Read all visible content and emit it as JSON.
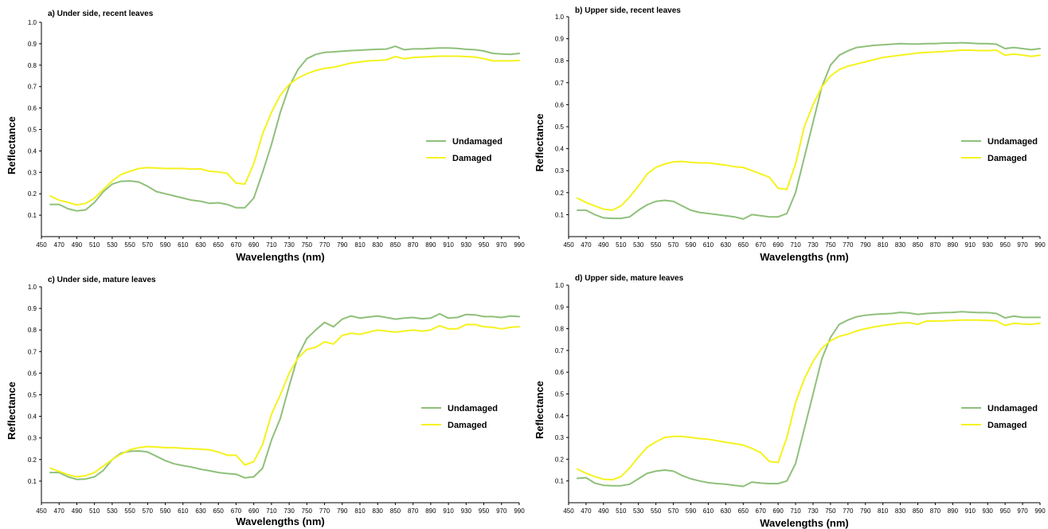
{
  "figure": {
    "colors": {
      "undamaged": "#8fc07a",
      "damaged": "#f5f21e",
      "axis": "#000000"
    }
  },
  "chart_data": [
    {
      "type": "line",
      "title": "a) Under side, recent leaves",
      "xlabel": "Wavelengths (nm)",
      "ylabel": "Reflectance",
      "xlim": [
        450,
        990
      ],
      "ylim": [
        0,
        1.0
      ],
      "xticks": [
        450,
        470,
        490,
        510,
        530,
        550,
        570,
        590,
        610,
        630,
        650,
        670,
        690,
        710,
        730,
        750,
        770,
        790,
        810,
        830,
        850,
        870,
        890,
        910,
        930,
        950,
        970,
        990
      ],
      "yticks": [
        0.1,
        0.2,
        0.3,
        0.4,
        0.5,
        0.6,
        0.7,
        0.8,
        0.9,
        1.0
      ],
      "grid": false,
      "legend": "right",
      "x": [
        460,
        470,
        480,
        490,
        500,
        510,
        520,
        530,
        540,
        550,
        560,
        570,
        580,
        590,
        600,
        610,
        620,
        630,
        640,
        650,
        660,
        670,
        680,
        690,
        700,
        710,
        720,
        730,
        740,
        750,
        760,
        770,
        780,
        790,
        800,
        810,
        820,
        830,
        840,
        850,
        860,
        870,
        880,
        890,
        900,
        910,
        920,
        930,
        940,
        950,
        960,
        970,
        980,
        990
      ],
      "series": [
        {
          "name": "Undamaged",
          "values": [
            0.15,
            0.15,
            0.13,
            0.12,
            0.125,
            0.16,
            0.21,
            0.245,
            0.258,
            0.26,
            0.255,
            0.235,
            0.21,
            0.2,
            0.19,
            0.18,
            0.17,
            0.165,
            0.155,
            0.158,
            0.15,
            0.135,
            0.135,
            0.18,
            0.3,
            0.43,
            0.58,
            0.7,
            0.78,
            0.83,
            0.85,
            0.86,
            0.862,
            0.865,
            0.868,
            0.87,
            0.872,
            0.874,
            0.875,
            0.888,
            0.872,
            0.876,
            0.876,
            0.878,
            0.88,
            0.88,
            0.878,
            0.874,
            0.872,
            0.866,
            0.855,
            0.852,
            0.85,
            0.855
          ]
        },
        {
          "name": "Damaged",
          "values": [
            0.19,
            0.17,
            0.16,
            0.148,
            0.155,
            0.18,
            0.22,
            0.26,
            0.29,
            0.305,
            0.318,
            0.322,
            0.32,
            0.318,
            0.318,
            0.318,
            0.315,
            0.316,
            0.305,
            0.302,
            0.295,
            0.25,
            0.245,
            0.34,
            0.48,
            0.58,
            0.66,
            0.71,
            0.74,
            0.76,
            0.775,
            0.785,
            0.79,
            0.8,
            0.81,
            0.815,
            0.82,
            0.822,
            0.825,
            0.84,
            0.83,
            0.836,
            0.838,
            0.84,
            0.842,
            0.842,
            0.842,
            0.84,
            0.838,
            0.83,
            0.82,
            0.82,
            0.82,
            0.822
          ]
        }
      ]
    },
    {
      "type": "line",
      "title": "b) Upper side, recent leaves",
      "xlabel": "Wavelengths (nm)",
      "ylabel": "Reflectance",
      "xlim": [
        450,
        990
      ],
      "ylim": [
        0,
        1.0
      ],
      "xticks": [
        450,
        470,
        490,
        510,
        530,
        550,
        570,
        590,
        610,
        630,
        650,
        670,
        690,
        710,
        730,
        750,
        770,
        790,
        810,
        830,
        850,
        870,
        890,
        910,
        930,
        950,
        970,
        990
      ],
      "yticks": [
        0.1,
        0.2,
        0.3,
        0.4,
        0.5,
        0.6,
        0.7,
        0.8,
        0.9,
        1.0
      ],
      "grid": false,
      "legend": "right",
      "x": [
        460,
        470,
        480,
        490,
        500,
        510,
        520,
        530,
        540,
        550,
        560,
        570,
        580,
        590,
        600,
        610,
        620,
        630,
        640,
        650,
        660,
        670,
        680,
        690,
        700,
        710,
        720,
        730,
        740,
        750,
        760,
        770,
        780,
        790,
        800,
        810,
        820,
        830,
        840,
        850,
        860,
        870,
        880,
        890,
        900,
        910,
        920,
        930,
        940,
        950,
        960,
        970,
        980,
        990
      ],
      "series": [
        {
          "name": "Undamaged",
          "values": [
            0.12,
            0.12,
            0.1,
            0.085,
            0.083,
            0.083,
            0.09,
            0.12,
            0.145,
            0.16,
            0.165,
            0.16,
            0.14,
            0.12,
            0.11,
            0.105,
            0.1,
            0.095,
            0.09,
            0.08,
            0.1,
            0.095,
            0.09,
            0.09,
            0.105,
            0.2,
            0.36,
            0.52,
            0.68,
            0.78,
            0.825,
            0.845,
            0.86,
            0.865,
            0.87,
            0.872,
            0.875,
            0.878,
            0.876,
            0.876,
            0.878,
            0.878,
            0.88,
            0.88,
            0.882,
            0.88,
            0.878,
            0.878,
            0.875,
            0.855,
            0.86,
            0.855,
            0.85,
            0.855
          ]
        },
        {
          "name": "Damaged",
          "values": [
            0.175,
            0.155,
            0.14,
            0.125,
            0.12,
            0.14,
            0.18,
            0.23,
            0.285,
            0.315,
            0.33,
            0.34,
            0.342,
            0.338,
            0.335,
            0.335,
            0.33,
            0.325,
            0.318,
            0.315,
            0.3,
            0.285,
            0.27,
            0.22,
            0.215,
            0.33,
            0.5,
            0.6,
            0.68,
            0.73,
            0.76,
            0.775,
            0.785,
            0.795,
            0.805,
            0.815,
            0.82,
            0.825,
            0.83,
            0.835,
            0.838,
            0.84,
            0.842,
            0.845,
            0.848,
            0.848,
            0.846,
            0.846,
            0.848,
            0.825,
            0.83,
            0.825,
            0.82,
            0.825
          ]
        }
      ]
    },
    {
      "type": "line",
      "title": "c) Under side, mature leaves",
      "xlabel": "Wavelengths (nm)",
      "ylabel": "Reflectance",
      "xlim": [
        450,
        990
      ],
      "ylim": [
        0,
        1.0
      ],
      "xticks": [
        450,
        470,
        490,
        510,
        530,
        550,
        570,
        590,
        610,
        630,
        650,
        670,
        690,
        710,
        730,
        750,
        770,
        790,
        810,
        830,
        850,
        870,
        890,
        910,
        930,
        950,
        970,
        990
      ],
      "yticks": [
        0.1,
        0.2,
        0.3,
        0.4,
        0.5,
        0.6,
        0.7,
        0.8,
        0.9,
        1.0
      ],
      "grid": false,
      "legend": "right",
      "x": [
        460,
        470,
        480,
        490,
        500,
        510,
        520,
        530,
        540,
        550,
        560,
        570,
        580,
        590,
        600,
        610,
        620,
        630,
        640,
        650,
        660,
        670,
        680,
        690,
        700,
        710,
        720,
        730,
        740,
        750,
        760,
        770,
        780,
        790,
        800,
        810,
        820,
        830,
        840,
        850,
        860,
        870,
        880,
        890,
        900,
        910,
        920,
        930,
        940,
        950,
        960,
        970,
        980,
        990
      ],
      "series": [
        {
          "name": "Undamaged",
          "values": [
            0.14,
            0.14,
            0.12,
            0.108,
            0.11,
            0.12,
            0.15,
            0.2,
            0.23,
            0.238,
            0.24,
            0.235,
            0.215,
            0.195,
            0.18,
            0.172,
            0.165,
            0.155,
            0.148,
            0.14,
            0.135,
            0.132,
            0.115,
            0.12,
            0.16,
            0.29,
            0.39,
            0.54,
            0.68,
            0.76,
            0.8,
            0.835,
            0.815,
            0.85,
            0.865,
            0.855,
            0.86,
            0.865,
            0.858,
            0.85,
            0.855,
            0.858,
            0.852,
            0.855,
            0.875,
            0.855,
            0.858,
            0.872,
            0.87,
            0.862,
            0.862,
            0.858,
            0.865,
            0.862
          ]
        },
        {
          "name": "Damaged",
          "values": [
            0.16,
            0.145,
            0.13,
            0.12,
            0.125,
            0.14,
            0.17,
            0.2,
            0.225,
            0.245,
            0.255,
            0.26,
            0.258,
            0.255,
            0.255,
            0.252,
            0.25,
            0.248,
            0.245,
            0.235,
            0.22,
            0.22,
            0.175,
            0.19,
            0.27,
            0.41,
            0.5,
            0.6,
            0.67,
            0.71,
            0.72,
            0.745,
            0.735,
            0.775,
            0.785,
            0.78,
            0.79,
            0.8,
            0.795,
            0.79,
            0.795,
            0.8,
            0.795,
            0.8,
            0.82,
            0.805,
            0.805,
            0.825,
            0.825,
            0.815,
            0.812,
            0.805,
            0.812,
            0.815
          ]
        }
      ]
    },
    {
      "type": "line",
      "title": "d) Upper side, mature leaves",
      "xlabel": "Wavelengths (nm)",
      "ylabel": "Reflectance",
      "xlim": [
        450,
        990
      ],
      "ylim": [
        0,
        1.0
      ],
      "xticks": [
        450,
        470,
        490,
        510,
        530,
        550,
        570,
        590,
        610,
        630,
        650,
        670,
        690,
        710,
        730,
        750,
        770,
        790,
        810,
        830,
        850,
        870,
        890,
        910,
        930,
        950,
        970,
        990
      ],
      "yticks": [
        0.1,
        0.2,
        0.3,
        0.4,
        0.5,
        0.6,
        0.7,
        0.8,
        0.9,
        1.0
      ],
      "grid": false,
      "legend": "right",
      "x": [
        460,
        470,
        480,
        490,
        500,
        510,
        520,
        530,
        540,
        550,
        560,
        570,
        580,
        590,
        600,
        610,
        620,
        630,
        640,
        650,
        660,
        670,
        680,
        690,
        700,
        710,
        720,
        730,
        740,
        750,
        760,
        770,
        780,
        790,
        800,
        810,
        820,
        830,
        840,
        850,
        860,
        870,
        880,
        890,
        900,
        910,
        920,
        930,
        940,
        950,
        960,
        970,
        980,
        990
      ],
      "series": [
        {
          "name": "Undamaged",
          "values": [
            0.112,
            0.115,
            0.09,
            0.08,
            0.078,
            0.078,
            0.085,
            0.11,
            0.135,
            0.145,
            0.15,
            0.145,
            0.125,
            0.11,
            0.1,
            0.092,
            0.088,
            0.085,
            0.08,
            0.075,
            0.095,
            0.09,
            0.088,
            0.088,
            0.1,
            0.18,
            0.34,
            0.5,
            0.66,
            0.76,
            0.82,
            0.84,
            0.855,
            0.862,
            0.866,
            0.868,
            0.87,
            0.875,
            0.872,
            0.866,
            0.87,
            0.872,
            0.874,
            0.875,
            0.878,
            0.876,
            0.874,
            0.874,
            0.87,
            0.85,
            0.858,
            0.852,
            0.852,
            0.852
          ]
        },
        {
          "name": "Damaged",
          "values": [
            0.155,
            0.135,
            0.12,
            0.108,
            0.105,
            0.12,
            0.16,
            0.21,
            0.255,
            0.28,
            0.3,
            0.305,
            0.305,
            0.3,
            0.295,
            0.292,
            0.285,
            0.278,
            0.272,
            0.265,
            0.25,
            0.23,
            0.19,
            0.185,
            0.3,
            0.46,
            0.57,
            0.65,
            0.71,
            0.745,
            0.765,
            0.775,
            0.79,
            0.8,
            0.808,
            0.815,
            0.82,
            0.825,
            0.828,
            0.82,
            0.835,
            0.835,
            0.836,
            0.838,
            0.84,
            0.84,
            0.84,
            0.838,
            0.836,
            0.815,
            0.825,
            0.822,
            0.82,
            0.825
          ]
        }
      ]
    }
  ]
}
